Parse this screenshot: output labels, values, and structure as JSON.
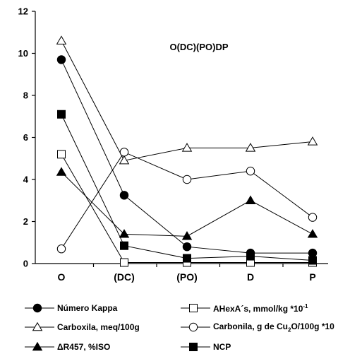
{
  "chart_data": {
    "type": "line",
    "title": "O(DC)(PO)DP",
    "categories": [
      "O",
      "(DC)",
      "(PO)",
      "D",
      "P"
    ],
    "ylim": [
      0,
      12
    ],
    "yticks": [
      "0",
      "2",
      "4",
      "6",
      "8",
      "10",
      "12"
    ],
    "grid": false,
    "legend_position": "bottom",
    "series": [
      {
        "name": "Número Kappa",
        "marker": "circle",
        "fill": "#000000",
        "values": [
          9.7,
          3.25,
          0.8,
          0.5,
          0.5
        ]
      },
      {
        "name": "AHexA´s, mmol/kg *10",
        "name_sup": "-1",
        "marker": "square",
        "fill": "#ffffff",
        "values": [
          5.2,
          0.05,
          0.05,
          0.05,
          0.05
        ]
      },
      {
        "name": "Carboxila, meq/100g",
        "marker": "triangle",
        "fill": "#ffffff",
        "values": [
          10.6,
          4.9,
          5.5,
          5.5,
          5.8
        ]
      },
      {
        "name_pre": "Carbonila, g de Cu",
        "name_sub": "2",
        "name_post": "O/100g *10",
        "name": "Carbonila, g de Cu2O/100g *10",
        "marker": "circle",
        "fill": "#ffffff",
        "values": [
          0.7,
          5.3,
          4.0,
          4.4,
          2.2
        ]
      },
      {
        "name": "ΔR457, %ISO",
        "marker": "triangle",
        "fill": "#000000",
        "values": [
          4.35,
          1.4,
          1.3,
          3.0,
          1.4
        ]
      },
      {
        "name": "NCP",
        "marker": "square",
        "fill": "#000000",
        "values": [
          7.1,
          0.85,
          0.25,
          0.35,
          0.15
        ]
      }
    ]
  }
}
